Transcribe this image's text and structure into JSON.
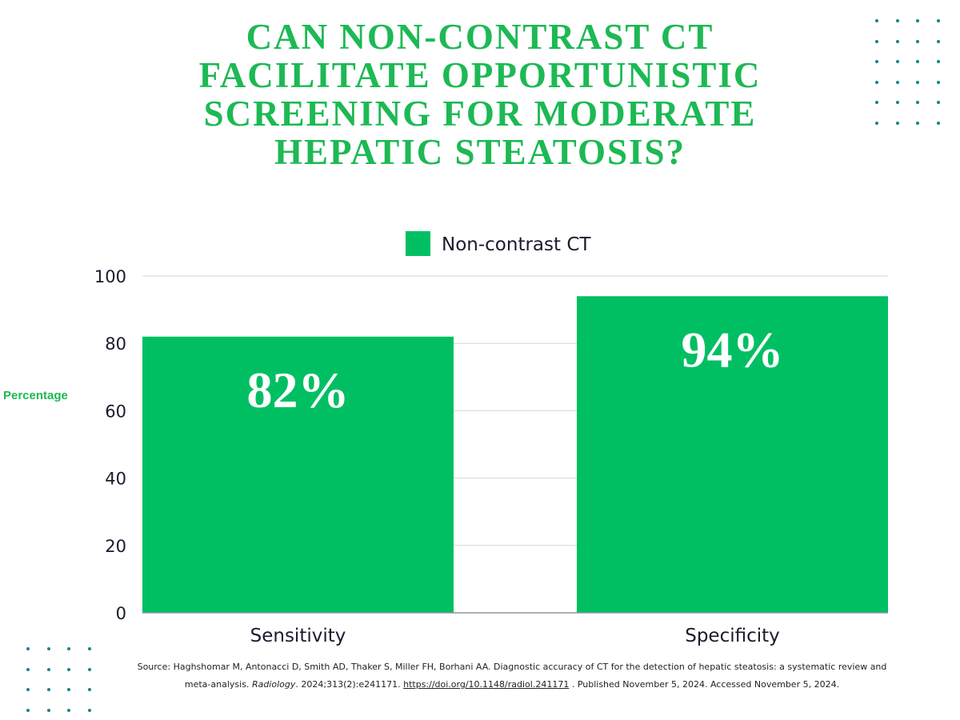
{
  "title": "CAN NON-CONTRAST CT FACILITATE OPPORTUNISTIC SCREENING FOR MODERATE HEPATIC STEATOSIS?",
  "colors": {
    "title": "#1db954",
    "bar": "#00bf63",
    "dots": "#13868c",
    "grid": "#cfd6dd",
    "axis_text": "#1a1a2e"
  },
  "chart_data": {
    "type": "bar",
    "categories": [
      "Sensitivity",
      "Specificity"
    ],
    "series": [
      {
        "name": "Non-contrast CT",
        "values": [
          82,
          94
        ]
      }
    ],
    "data_labels": [
      "82%",
      "94%"
    ],
    "title": "",
    "xlabel": "",
    "ylabel": "Percentage",
    "ylim": [
      0,
      100
    ],
    "yticks": [
      0,
      20,
      40,
      60,
      80,
      100
    ],
    "grid": true,
    "legend_position": "top-center"
  },
  "source": {
    "prefix": "Source: Haghshomar M, Antonacci D, Smith AD, Thaker S, Miller FH, Borhani AA. Diagnostic accuracy of CT for the detection of hepatic steatosis: a systematic review and meta-analysis. ",
    "journal": "Radiology",
    "citation": ". 2024;313(2):e241171. ",
    "doi": "https://doi.org/10.1148/radiol.241171",
    "suffix": " . Published November 5, 2024. Accessed November 5, 2024."
  }
}
